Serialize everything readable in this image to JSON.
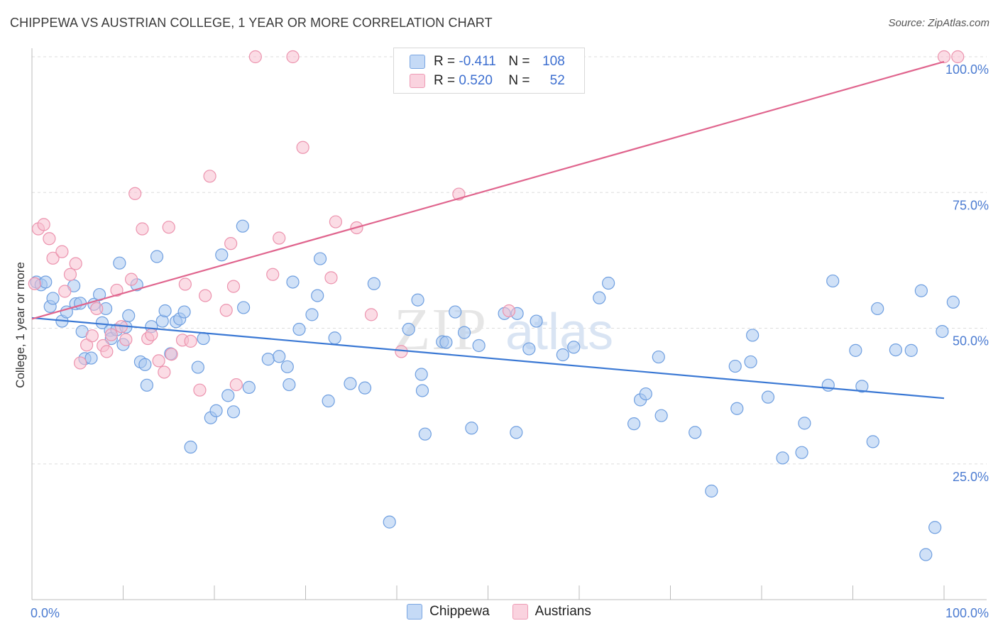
{
  "header": {
    "title": "CHIPPEWA VS AUSTRIAN COLLEGE, 1 YEAR OR MORE CORRELATION CHART",
    "source": "Source: ZipAtlas.com"
  },
  "legend_box": {
    "rows": [
      {
        "r_label": "R =",
        "r_value": "-0.411",
        "n_label": "N =",
        "n_value": "108"
      },
      {
        "r_label": "R =",
        "r_value": "0.520",
        "n_label": "N =",
        "n_value": "52"
      }
    ]
  },
  "watermark": {
    "zip": "ZIP",
    "atlas": "atlas"
  },
  "colors": {
    "chippewa_fill": "#a9c8f0",
    "chippewa_stroke": "#6f9fe0",
    "chippewa_line": "#3a78d4",
    "austrians_fill": "#f7bfd0",
    "austrians_stroke": "#ec93ae",
    "austrians_line": "#e0658e",
    "tick_text": "#4b7bd1",
    "grid": "#dddddd"
  },
  "chart_data": {
    "type": "scatter",
    "ylabel": "College, 1 year or more",
    "xlabel": "",
    "xlim": [
      0,
      100
    ],
    "ylim": [
      0,
      100
    ],
    "x_tick_labels": [
      "0.0%",
      "100.0%"
    ],
    "y_tick_labels": [
      "25.0%",
      "50.0%",
      "75.0%",
      "100.0%"
    ],
    "y_tick_values": [
      25,
      50,
      75,
      100
    ],
    "grid": true,
    "legend_placement": "bottom-center",
    "series": [
      {
        "name": "Chippewa",
        "trend": {
          "x": [
            0,
            100
          ],
          "y": [
            51.9,
            37.1
          ]
        },
        "points": [
          [
            0.5,
            58.5
          ],
          [
            1,
            58
          ],
          [
            1.5,
            58.5
          ],
          [
            2,
            54
          ],
          [
            2.3,
            55.5
          ],
          [
            3.3,
            51.3
          ],
          [
            3.8,
            53
          ],
          [
            4.6,
            57.8
          ],
          [
            4.8,
            54.5
          ],
          [
            5.3,
            54.6
          ],
          [
            5.5,
            49.4
          ],
          [
            5.8,
            44.4
          ],
          [
            6.5,
            44.5
          ],
          [
            6.8,
            54.4
          ],
          [
            7.4,
            56.2
          ],
          [
            7.7,
            51
          ],
          [
            8.1,
            53.6
          ],
          [
            8.6,
            49.6
          ],
          [
            8.7,
            48.1
          ],
          [
            9.3,
            49.7
          ],
          [
            9.6,
            62
          ],
          [
            10,
            47
          ],
          [
            10.3,
            50.2
          ],
          [
            10.6,
            52.3
          ],
          [
            11.5,
            58
          ],
          [
            11.9,
            43.8
          ],
          [
            12.4,
            43.3
          ],
          [
            12.6,
            39.5
          ],
          [
            13.1,
            50.3
          ],
          [
            13.7,
            63.2
          ],
          [
            14.3,
            51.3
          ],
          [
            14.6,
            53.2
          ],
          [
            15.2,
            45.3
          ],
          [
            15.8,
            51.2
          ],
          [
            16.2,
            51.7
          ],
          [
            16.7,
            53
          ],
          [
            17.4,
            28.1
          ],
          [
            18.2,
            42.8
          ],
          [
            18.8,
            48.1
          ],
          [
            19.6,
            33.5
          ],
          [
            20.2,
            34.8
          ],
          [
            20.8,
            63.5
          ],
          [
            21.5,
            37.6
          ],
          [
            22.1,
            34.6
          ],
          [
            23.1,
            68.8
          ],
          [
            23.2,
            53.8
          ],
          [
            23.8,
            39.1
          ],
          [
            25.9,
            44.3
          ],
          [
            27.1,
            44.8
          ],
          [
            28,
            42.9
          ],
          [
            28.2,
            39.6
          ],
          [
            28.6,
            58.5
          ],
          [
            29.3,
            49.8
          ],
          [
            30.7,
            52.5
          ],
          [
            31.3,
            56
          ],
          [
            31.6,
            62.8
          ],
          [
            32.5,
            36.6
          ],
          [
            33.2,
            48.2
          ],
          [
            34.9,
            39.8
          ],
          [
            36.5,
            39
          ],
          [
            37.5,
            58.2
          ],
          [
            39.2,
            14.3
          ],
          [
            41.3,
            49.8
          ],
          [
            42.3,
            55.2
          ],
          [
            42.7,
            41.5
          ],
          [
            42.8,
            38.5
          ],
          [
            43.1,
            30.5
          ],
          [
            45,
            47.5
          ],
          [
            45.4,
            47.4
          ],
          [
            46.4,
            53
          ],
          [
            47.4,
            49.2
          ],
          [
            48.2,
            31.6
          ],
          [
            49,
            46.8
          ],
          [
            51.8,
            52.7
          ],
          [
            53.1,
            30.8
          ],
          [
            53.2,
            52.7
          ],
          [
            54.5,
            46.2
          ],
          [
            55.3,
            51.3
          ],
          [
            58.2,
            45.1
          ],
          [
            59.4,
            46.5
          ],
          [
            62.2,
            55.6
          ],
          [
            63.2,
            58.3
          ],
          [
            66,
            32.4
          ],
          [
            66.7,
            36.8
          ],
          [
            67.3,
            37.9
          ],
          [
            68.7,
            44.7
          ],
          [
            69,
            33.9
          ],
          [
            72.7,
            30.8
          ],
          [
            74.5,
            20
          ],
          [
            77.1,
            43
          ],
          [
            77.3,
            35.2
          ],
          [
            78.8,
            43.8
          ],
          [
            79,
            48.7
          ],
          [
            80.7,
            37.3
          ],
          [
            82.3,
            26.1
          ],
          [
            84.4,
            27.1
          ],
          [
            84.7,
            32.5
          ],
          [
            87.3,
            39.5
          ],
          [
            87.8,
            58.7
          ],
          [
            90.3,
            45.9
          ],
          [
            91,
            39.3
          ],
          [
            92.2,
            29.1
          ],
          [
            92.7,
            53.6
          ],
          [
            94.7,
            46
          ],
          [
            96.4,
            45.9
          ],
          [
            97.5,
            56.9
          ],
          [
            98,
            8.3
          ],
          [
            99,
            13.3
          ],
          [
            99.8,
            49.4
          ],
          [
            101,
            54.8
          ]
        ]
      },
      {
        "name": "Austrians",
        "trend": {
          "x": [
            0,
            100
          ],
          "y": [
            51.7,
            99.1
          ]
        },
        "points": [
          [
            0.3,
            58.2
          ],
          [
            0.7,
            68.3
          ],
          [
            1.3,
            69.1
          ],
          [
            1.9,
            66.5
          ],
          [
            2.3,
            62.9
          ],
          [
            3.3,
            64.1
          ],
          [
            3.6,
            56.8
          ],
          [
            4.2,
            59.9
          ],
          [
            4.8,
            61.9
          ],
          [
            5.3,
            43.6
          ],
          [
            6,
            46.9
          ],
          [
            6.6,
            48.6
          ],
          [
            7.1,
            53.6
          ],
          [
            7.8,
            46.8
          ],
          [
            8.2,
            45.7
          ],
          [
            8.7,
            48.8
          ],
          [
            9.3,
            57
          ],
          [
            9.8,
            50.3
          ],
          [
            10.3,
            47.9
          ],
          [
            10.9,
            59
          ],
          [
            11.3,
            74.8
          ],
          [
            12.1,
            68.3
          ],
          [
            12.7,
            48.1
          ],
          [
            13.1,
            48.8
          ],
          [
            13.9,
            44
          ],
          [
            14.5,
            41.9
          ],
          [
            15,
            68.6
          ],
          [
            15.3,
            45.2
          ],
          [
            16.5,
            47.8
          ],
          [
            16.8,
            58.1
          ],
          [
            17.4,
            47.6
          ],
          [
            18.4,
            38.6
          ],
          [
            19,
            56
          ],
          [
            19.5,
            78
          ],
          [
            21.3,
            53.3
          ],
          [
            21.8,
            65.6
          ],
          [
            22.1,
            57.7
          ],
          [
            22.4,
            39.6
          ],
          [
            24.5,
            100
          ],
          [
            26.4,
            59.9
          ],
          [
            27.1,
            66.6
          ],
          [
            28.6,
            100
          ],
          [
            29.7,
            83.3
          ],
          [
            32.8,
            59.3
          ],
          [
            33.3,
            69.6
          ],
          [
            35.6,
            68.5
          ],
          [
            37.2,
            52.5
          ],
          [
            40.5,
            45.7
          ],
          [
            46.8,
            74.7
          ],
          [
            52.3,
            53.2
          ],
          [
            100,
            100
          ],
          [
            101.5,
            100
          ]
        ]
      }
    ]
  },
  "bottom_legend": {
    "items": [
      {
        "label": "Chippewa"
      },
      {
        "label": "Austrians"
      }
    ]
  }
}
